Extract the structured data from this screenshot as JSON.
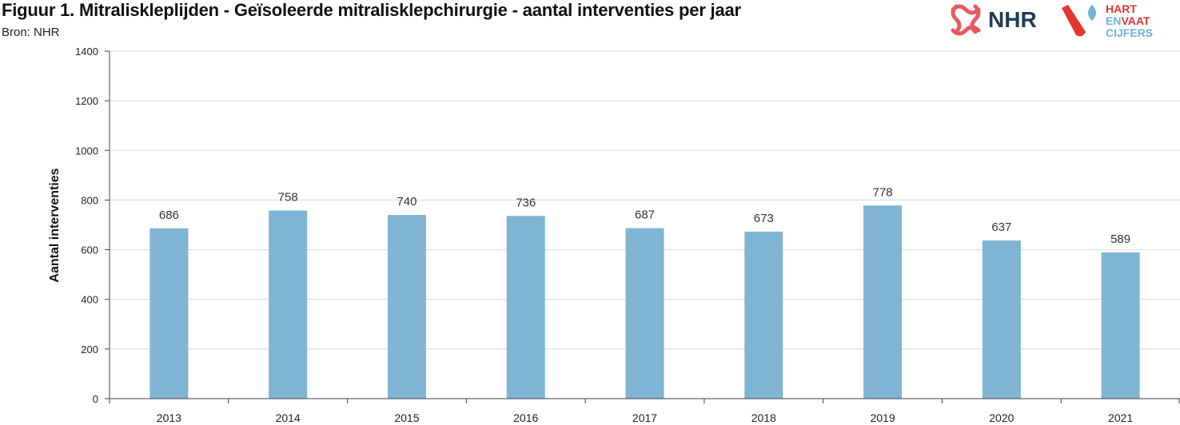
{
  "header": {
    "title": "Figuur 1. Mitraliskleplijden - Geïsoleerde mitralisklepchirurgie - aantal interventies per jaar",
    "source": "Bron: NHR"
  },
  "logos": {
    "nhr": {
      "text": "NHR",
      "color": "#e85a5f",
      "text_color": "#1f3b55"
    },
    "hvc": {
      "line1": "HART",
      "line2a": "EN",
      "line2b": "VAAT",
      "line3": "CIJFERS",
      "red": "#e3342f",
      "blue": "#6fb3d8"
    }
  },
  "colors": {
    "bar": "#7fb5d3",
    "grid": "#d9d9d9",
    "axis": "#404040"
  },
  "chart_data": {
    "type": "bar",
    "title": "Figuur 1. Mitraliskleplijden - Geïsoleerde mitralisklepchirurgie - aantal interventies per jaar",
    "xlabel": "",
    "ylabel": "Aantal interventies",
    "categories": [
      "2013",
      "2014",
      "2015",
      "2016",
      "2017",
      "2018",
      "2019",
      "2020",
      "2021"
    ],
    "values": [
      686,
      758,
      740,
      736,
      687,
      673,
      778,
      637,
      589
    ],
    "ylim": [
      0,
      1400
    ],
    "yticks": [
      0,
      200,
      400,
      600,
      800,
      1000,
      1200,
      1400
    ],
    "grid": true,
    "legend": "none",
    "data_labels": true
  }
}
